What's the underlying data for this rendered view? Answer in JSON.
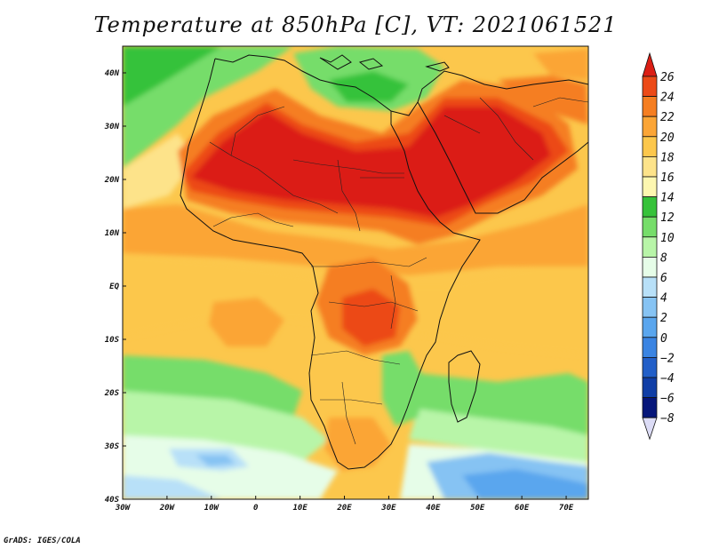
{
  "title": "Temperature at 850hPa [C], VT: 2021061521",
  "credit": "GrADS: IGES/COLA",
  "map": {
    "projection": "latlon",
    "lon_range": [
      -30,
      75
    ],
    "lat_range": [
      -40,
      45
    ],
    "lon_ticks": [
      {
        "value": -30,
        "label": "30W"
      },
      {
        "value": -20,
        "label": "20W"
      },
      {
        "value": -10,
        "label": "10W"
      },
      {
        "value": 0,
        "label": "0"
      },
      {
        "value": 10,
        "label": "10E"
      },
      {
        "value": 20,
        "label": "20E"
      },
      {
        "value": 30,
        "label": "30E"
      },
      {
        "value": 40,
        "label": "40E"
      },
      {
        "value": 50,
        "label": "50E"
      },
      {
        "value": 60,
        "label": "60E"
      },
      {
        "value": 70,
        "label": "70E"
      }
    ],
    "lat_ticks": [
      {
        "value": 40,
        "label": "40N"
      },
      {
        "value": 30,
        "label": "30N"
      },
      {
        "value": 20,
        "label": "20N"
      },
      {
        "value": 10,
        "label": "10N"
      },
      {
        "value": 0,
        "label": "EQ"
      },
      {
        "value": -10,
        "label": "10S"
      },
      {
        "value": -20,
        "label": "20S"
      },
      {
        "value": -30,
        "label": "30S"
      },
      {
        "value": -40,
        "label": "40S"
      }
    ]
  },
  "colorbar": {
    "levels": [
      "26",
      "24",
      "22",
      "20",
      "18",
      "16",
      "14",
      "12",
      "10",
      "8",
      "6",
      "4",
      "2",
      "0",
      "−2",
      "−4",
      "−6",
      "−8"
    ],
    "colors": [
      "#db1e14",
      "#ec4a17",
      "#f57e21",
      "#fba536",
      "#fcc74c",
      "#fde38a",
      "#fdf7b0",
      "#36c23a",
      "#76dd6a",
      "#b8f5a8",
      "#e6fde8",
      "#b8e0f8",
      "#86c3f3",
      "#5aa6ee",
      "#3a84e2",
      "#225fc8",
      "#103ea6",
      "#06167a",
      "#dcdcf6"
    ]
  }
}
